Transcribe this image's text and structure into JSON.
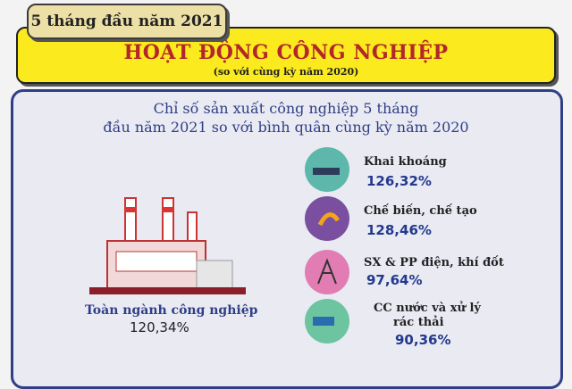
{
  "header": {
    "tab": "5 tháng đầu năm 2021",
    "title": "HOẠT ĐỘNG CÔNG NGHIỆP",
    "subtitle": "(so với cùng kỳ năm 2020)"
  },
  "panel": {
    "heading": [
      "Chỉ số sản xuất công nghiệp 5 tháng",
      "đầu năm 2021 so với bình quân cùng kỳ năm 2020"
    ],
    "total": {
      "label": "Toàn ngành công nghiệp",
      "value": "120,34%"
    },
    "items": [
      {
        "label": [
          "Khai khoáng"
        ],
        "value": "126,32%"
      },
      {
        "label": [
          "Chế biến, chế tạo"
        ],
        "value": "128,46%"
      },
      {
        "label": [
          "SX & PP điện, khí đốt"
        ],
        "value": "97,64%"
      },
      {
        "label": [
          "CC nước và xử lý",
          "rác thải"
        ],
        "value": "90,36%"
      }
    ]
  }
}
